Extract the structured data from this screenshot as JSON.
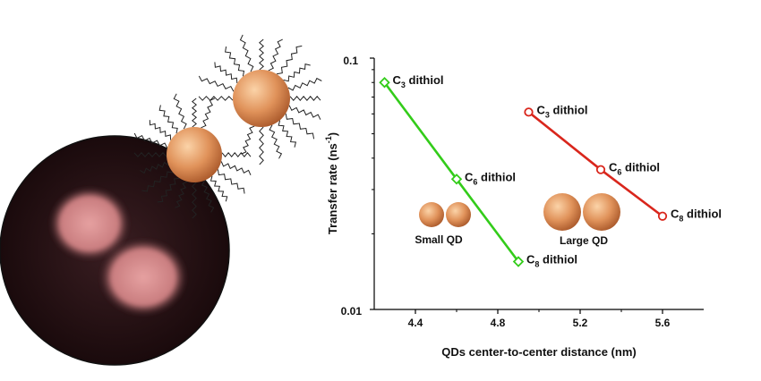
{
  "chart_data": {
    "type": "line",
    "xlabel": "QDs center-to-center distance (nm)",
    "ylabel": "Transfer rate (ns",
    "ylabel_sup": "-1",
    "ylabel_close": ")",
    "yscale": "log",
    "xlim": [
      4.2,
      5.8
    ],
    "ylim": [
      0.01,
      0.1
    ],
    "xticks": [
      "4.4",
      "4.8",
      "5.2",
      "5.6"
    ],
    "yticks": [
      "0.1",
      "0.01"
    ],
    "series": [
      {
        "name": "Small QD",
        "color": "#33cc1a",
        "points": [
          {
            "x": 4.25,
            "y": 0.08,
            "label_base": "C",
            "label_sub": "3",
            "label_rest": " dithiol"
          },
          {
            "x": 4.6,
            "y": 0.033,
            "label_base": "C",
            "label_sub": "6",
            "label_rest": " dithiol"
          },
          {
            "x": 4.9,
            "y": 0.0155,
            "label_base": "C",
            "label_sub": "8",
            "label_rest": " dithiol"
          }
        ]
      },
      {
        "name": "Large QD",
        "color": "#d9261c",
        "points": [
          {
            "x": 4.95,
            "y": 0.061,
            "label_base": "C",
            "label_sub": "3",
            "label_rest": " dithiol"
          },
          {
            "x": 5.3,
            "y": 0.036,
            "label_base": "C",
            "label_sub": "6",
            "label_rest": " dithiol"
          },
          {
            "x": 5.6,
            "y": 0.0235,
            "label_base": "C",
            "label_sub": "8",
            "label_rest": " dithiol"
          }
        ]
      }
    ]
  },
  "colors": {
    "dot_dark": "#2b1416",
    "dot_particle": "#d88f8f",
    "sphere": "#e0925a"
  }
}
